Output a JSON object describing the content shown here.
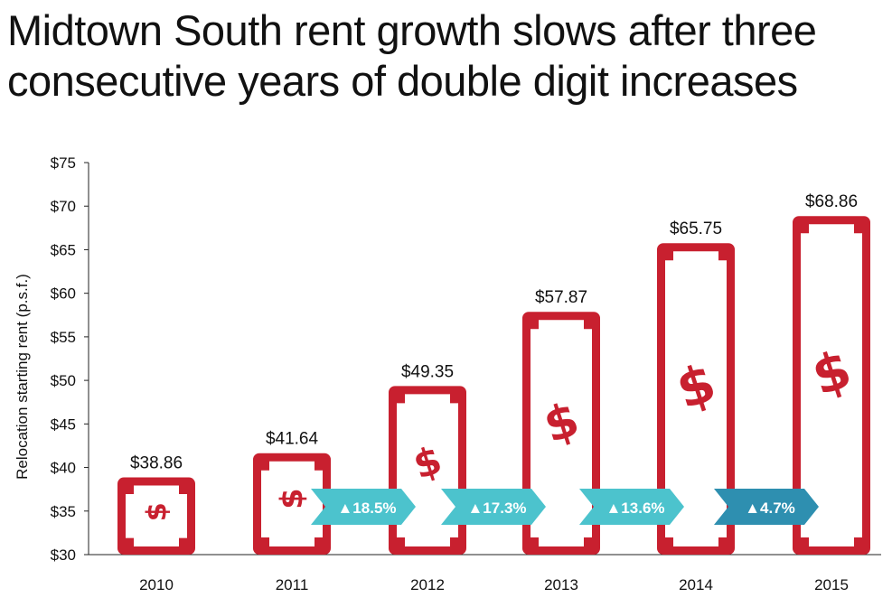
{
  "title_lines": [
    "Midtown South rent growth slows after three",
    "consecutive years of double digit increases"
  ],
  "colors": {
    "bar": "#c8202f",
    "arrow_light": "#4cc3cd",
    "arrow_dark": "#2e8fb0",
    "axis": "#222222"
  },
  "chart_data": {
    "type": "bar",
    "title": "Midtown South rent growth slows after three consecutive years of double digit increases",
    "categories": [
      "2010",
      "2011",
      "2012",
      "2013",
      "2014",
      "2015"
    ],
    "values": [
      38.86,
      41.64,
      49.35,
      57.87,
      65.75,
      68.86
    ],
    "value_labels": [
      "$38.86",
      "$41.64",
      "$49.35",
      "$57.87",
      "$65.75",
      "$68.86"
    ],
    "ylabel": "Relocation starting rent (p.s.f.)",
    "xlabel": "",
    "ylim": [
      30,
      75
    ],
    "yticks": [
      30,
      35,
      40,
      45,
      50,
      55,
      60,
      65,
      70,
      75
    ],
    "ytick_labels": [
      "$30",
      "$35",
      "$40",
      "$45",
      "$50",
      "$55",
      "$60",
      "$65",
      "$70",
      "$75"
    ],
    "bar_icon": "dollar-bill-icon",
    "growth_annotations": [
      {
        "between": [
          "2011",
          "2012"
        ],
        "label": "▲18.5%",
        "style": "light"
      },
      {
        "between": [
          "2012",
          "2013"
        ],
        "label": "▲17.3%",
        "style": "light"
      },
      {
        "between": [
          "2013",
          "2014"
        ],
        "label": "▲13.6%",
        "style": "light"
      },
      {
        "between": [
          "2014",
          "2015"
        ],
        "label": "▲4.7%",
        "style": "dark"
      }
    ],
    "grid": false,
    "legend": "none"
  }
}
